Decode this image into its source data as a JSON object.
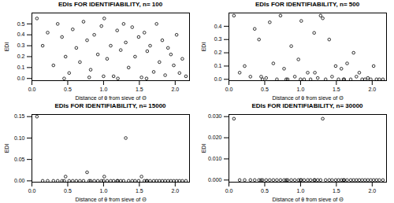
{
  "chart_data": [
    {
      "type": "scatter",
      "title": "EDIs FOR IDENTIFIABILITY, n= 100",
      "xlabel": "Distance of θ from sieve of Θ",
      "ylabel": "EDI",
      "marker": "circle",
      "color": "#000000",
      "x": [
        0.07,
        0.15,
        0.22,
        0.3,
        0.36,
        0.42,
        0.47,
        0.52,
        0.57,
        0.62,
        0.67,
        0.72,
        0.77,
        0.82,
        0.87,
        0.92,
        0.97,
        1.01,
        1.05,
        1.1,
        1.14,
        1.19,
        1.24,
        1.28,
        1.31,
        1.35,
        1.4,
        1.44,
        1.49,
        1.53,
        1.57,
        1.61,
        1.65,
        1.7,
        1.74,
        1.78,
        1.82,
        1.86,
        1.9,
        1.94,
        1.98,
        2.02,
        2.06,
        2.1,
        2.15,
        0.45,
        0.8,
        1.2,
        1.6,
        1.0
      ],
      "values": [
        0.55,
        0.3,
        0.42,
        0.12,
        0.5,
        0.38,
        0.2,
        0.05,
        0.45,
        0.28,
        0.15,
        0.52,
        0.35,
        0.08,
        0.4,
        0.22,
        0.48,
        0.55,
        0.18,
        0.3,
        0.02,
        0.44,
        0.26,
        0.5,
        0.33,
        0.1,
        0.47,
        0.2,
        0.38,
        0.01,
        0.42,
        0.25,
        0.3,
        0.06,
        0.5,
        0.15,
        0.35,
        0.03,
        0.28,
        0.22,
        0.12,
        0.4,
        0.05,
        0.18,
        0.02,
        0.0,
        0.01,
        0.0,
        0.0,
        0.02
      ],
      "xlim": [
        0,
        2.2
      ],
      "xticks": [
        {
          "value": 0,
          "label": "0.0"
        },
        0.5,
        {
          "value": 1,
          "label": "1.0"
        },
        1.5,
        {
          "value": 2,
          "label": "2.0"
        }
      ],
      "ylim": [
        -0.02,
        0.6
      ],
      "yticks": [
        {
          "value": 0,
          "label": "0.0"
        },
        0.1,
        0.2,
        0.3,
        0.4,
        0.5
      ]
    },
    {
      "type": "scatter",
      "title": "EDIs FOR IDENTIFIABILITY, n= 500",
      "xlabel": "Distance of θ from sieve of Θ",
      "ylabel": "EDI",
      "marker": "circle",
      "color": "#000000",
      "x": [
        0.07,
        0.15,
        0.22,
        0.3,
        0.36,
        0.42,
        0.47,
        0.52,
        0.57,
        0.62,
        0.67,
        0.72,
        0.77,
        0.82,
        0.87,
        0.92,
        0.97,
        1.01,
        1.05,
        1.1,
        1.14,
        1.19,
        1.24,
        1.28,
        1.31,
        1.35,
        1.4,
        1.44,
        1.49,
        1.53,
        1.57,
        1.61,
        1.65,
        1.7,
        1.74,
        1.78,
        1.82,
        1.86,
        1.9,
        1.94,
        1.98,
        2.02,
        2.06,
        2.1,
        2.15,
        0.45,
        0.8,
        1.2,
        1.6,
        1.0
      ],
      "values": [
        0.48,
        0.05,
        0.1,
        0.02,
        0.38,
        0.3,
        0.0,
        0.01,
        0.43,
        0.12,
        0.0,
        0.48,
        0.08,
        0.0,
        0.25,
        0.02,
        0.15,
        0.44,
        0.0,
        0.05,
        0.0,
        0.35,
        0.01,
        0.48,
        0.46,
        0.0,
        0.3,
        0.02,
        0.1,
        0.0,
        0.08,
        0.0,
        0.12,
        0.0,
        0.2,
        0.02,
        0.05,
        0.0,
        0.0,
        0.01,
        0.0,
        0.1,
        0.0,
        0.0,
        0.0,
        0.02,
        0.0,
        0.05,
        0.0,
        0.0
      ],
      "xlim": [
        0,
        2.2
      ],
      "xticks": [
        {
          "value": 0,
          "label": "0.0"
        },
        0.5,
        {
          "value": 1,
          "label": "1.0"
        },
        1.5,
        {
          "value": 2,
          "label": "2.0"
        }
      ],
      "ylim": [
        -0.01,
        0.5
      ],
      "yticks": [
        {
          "value": 0,
          "label": "0.0"
        },
        0.1,
        0.2,
        0.3,
        0.4
      ]
    },
    {
      "type": "scatter",
      "title": "EDIs FOR IDENTIFIABILITY, n= 15000",
      "xlabel": "Distance of θ from sieve of Θ",
      "ylabel": "EDI",
      "marker": "circle",
      "color": "#000000",
      "x": [
        0.07,
        0.15,
        0.22,
        0.3,
        0.36,
        0.42,
        0.47,
        0.52,
        0.57,
        0.62,
        0.67,
        0.72,
        0.77,
        0.82,
        0.87,
        0.92,
        0.97,
        1.01,
        1.05,
        1.1,
        1.14,
        1.19,
        1.24,
        1.28,
        1.31,
        1.35,
        1.4,
        1.44,
        1.49,
        1.53,
        1.57,
        1.61,
        1.65,
        1.7,
        1.74,
        1.78,
        1.82,
        1.86,
        1.9,
        1.94,
        1.98,
        2.02,
        2.06,
        2.1,
        2.15,
        0.45,
        0.8,
        1.2,
        1.6,
        1.0
      ],
      "values": [
        0.15,
        0,
        0,
        0,
        0,
        0,
        0.01,
        0,
        0,
        0,
        0,
        0,
        0.02,
        0,
        0,
        0,
        0,
        0.01,
        0,
        0,
        0,
        0,
        0,
        0,
        0.1,
        0,
        0,
        0,
        0,
        0.01,
        0,
        0,
        0,
        0,
        0,
        0,
        0,
        0,
        0,
        0,
        0,
        0,
        0,
        0,
        0,
        0,
        0,
        0,
        0,
        0
      ],
      "xlim": [
        0,
        2.2
      ],
      "xticks": [
        {
          "value": 0,
          "label": "0.0"
        },
        0.5,
        {
          "value": 1,
          "label": "1.0"
        },
        1.5,
        {
          "value": 2,
          "label": "2.0"
        }
      ],
      "ylim": [
        -0.003,
        0.155
      ],
      "yticks": [
        {
          "value": 0,
          "label": "0.00"
        },
        0.05,
        {
          "value": 0.1,
          "label": "0.10"
        },
        0.15
      ]
    },
    {
      "type": "scatter",
      "title": "EDIs FOR IDENTIFIABILITY, n= 30000",
      "xlabel": "Distance of θ from sieve of Θ",
      "ylabel": "EDI",
      "marker": "circle",
      "color": "#000000",
      "x": [
        0.07,
        0.15,
        0.22,
        0.3,
        0.36,
        0.42,
        0.47,
        0.52,
        0.57,
        0.62,
        0.67,
        0.72,
        0.77,
        0.82,
        0.87,
        0.92,
        0.97,
        1.01,
        1.05,
        1.1,
        1.14,
        1.19,
        1.24,
        1.28,
        1.31,
        1.35,
        1.4,
        1.44,
        1.49,
        1.53,
        1.57,
        1.61,
        1.65,
        1.7,
        1.74,
        1.78,
        1.82,
        1.86,
        1.9,
        1.94,
        1.98,
        2.02,
        2.06,
        2.1,
        2.15,
        0.45,
        0.8,
        1.2,
        1.6,
        1.0
      ],
      "values": [
        0.029,
        0,
        0,
        0,
        0,
        0,
        0,
        0,
        0,
        0,
        0,
        0,
        0,
        0,
        0,
        0,
        0,
        0,
        0,
        0,
        0,
        0,
        0,
        0,
        0.029,
        0,
        0,
        0,
        0,
        0,
        0,
        0,
        0,
        0,
        0,
        0,
        0,
        0,
        0,
        0,
        0,
        0,
        0,
        0,
        0,
        0,
        0,
        0,
        0,
        0
      ],
      "xlim": [
        0,
        2.2
      ],
      "xticks": [
        {
          "value": 0,
          "label": "0.0"
        },
        0.5,
        {
          "value": 1,
          "label": "1.0"
        },
        1.5,
        {
          "value": 2,
          "label": "2.0"
        }
      ],
      "ylim": [
        -0.001,
        0.031
      ],
      "yticks": [
        {
          "value": 0,
          "label": "0.000"
        },
        {
          "value": 0.01,
          "label": "0.010"
        },
        {
          "value": 0.02,
          "label": "0.020"
        },
        {
          "value": 0.03,
          "label": "0.030"
        }
      ]
    }
  ]
}
